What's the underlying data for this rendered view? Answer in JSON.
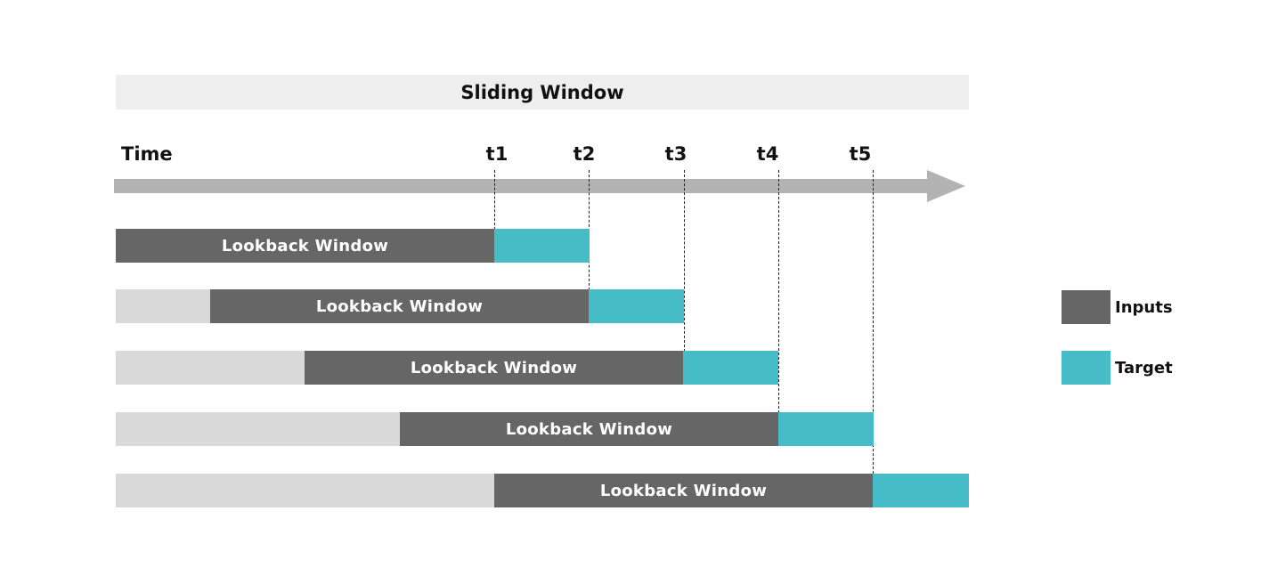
{
  "title": "Sliding Window",
  "axis": {
    "label": "Time",
    "ticks": [
      "t1",
      "t2",
      "t3",
      "t4",
      "t5"
    ]
  },
  "rows": [
    {
      "window_label": "Lookback Window"
    },
    {
      "window_label": "Lookback Window"
    },
    {
      "window_label": "Lookback Window"
    },
    {
      "window_label": "Lookback Window"
    },
    {
      "window_label": "Lookback Window"
    }
  ],
  "legend": [
    {
      "label": "Inputs",
      "color": "#666666"
    },
    {
      "label": "Target",
      "color": "#46bcc7"
    }
  ],
  "colors": {
    "inputs": "#666666",
    "target": "#46bcc7",
    "padding": "#d9d9d9",
    "arrow": "#b3b3b3",
    "title_bg": "#eeeeee"
  }
}
